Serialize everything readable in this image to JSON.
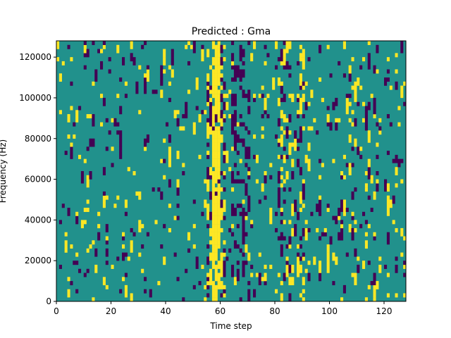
{
  "chart_data": {
    "type": "heatmap",
    "title": "Predicted : Gma",
    "xlabel": "Time step",
    "ylabel": "Frequency (Hz)",
    "xlim": [
      0,
      128
    ],
    "ylim": [
      0,
      128000
    ],
    "x_ticks": [
      0,
      20,
      40,
      60,
      80,
      100,
      120
    ],
    "y_ticks": [
      0,
      20000,
      40000,
      60000,
      80000,
      100000,
      120000
    ],
    "grid": false,
    "legend": "none",
    "colormap": "viridis",
    "colors": {
      "background": "#21918c",
      "high": "#fde725",
      "low": "#440154"
    },
    "columns": 128,
    "rows": 64,
    "values_description": "cell values are ternary: 1 = high (yellow), -1 = low (purple), 0 = neutral (teal)",
    "cells": [
      {
        "x": [
          57,
          59
        ],
        "y": [
          0,
          128000
        ],
        "v": 1,
        "note": "dense yellow band"
      },
      {
        "x": [
          66,
          68
        ],
        "y": [
          0,
          100000
        ],
        "v": -1,
        "note": "dense purple band"
      }
    ]
  }
}
